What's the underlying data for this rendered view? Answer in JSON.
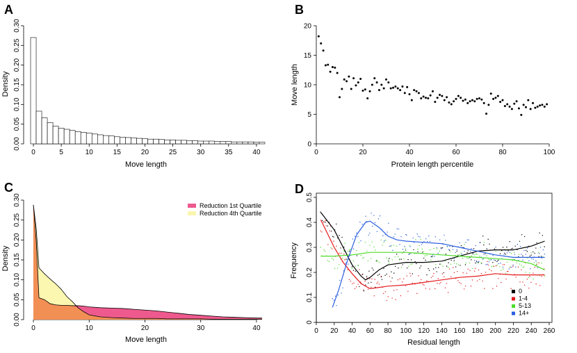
{
  "chart_data": [
    {
      "panel": "A",
      "type": "bar",
      "title": "",
      "xlabel": "Move length",
      "ylabel": "Density",
      "xlim": [
        -1,
        42
      ],
      "ylim": [
        0,
        0.3
      ],
      "xticks": [
        0,
        5,
        10,
        15,
        20,
        25,
        30,
        35,
        40
      ],
      "yticks": [
        0.0,
        0.05,
        0.1,
        0.15,
        0.2,
        0.25,
        0.3
      ],
      "ytick_labels": [
        "0.00",
        "0.05",
        "0.10",
        "0.15",
        "0.20",
        "0.25",
        "0.30"
      ],
      "bin_width": 1,
      "bin_starts": [
        -0.5,
        0.5,
        1.5,
        2.5,
        3.5,
        4.5,
        5.5,
        6.5,
        7.5,
        8.5,
        9.5,
        10.5,
        11.5,
        12.5,
        13.5,
        14.5,
        15.5,
        16.5,
        17.5,
        18.5,
        19.5,
        20.5,
        21.5,
        22.5,
        23.5,
        24.5,
        25.5,
        26.5,
        27.5,
        28.5,
        29.5,
        30.5,
        31.5,
        32.5,
        33.5,
        34.5,
        35.5,
        36.5,
        37.5,
        38.5,
        39.5,
        40.5
      ],
      "values": [
        0.27,
        0.083,
        0.066,
        0.054,
        0.045,
        0.04,
        0.037,
        0.034,
        0.031,
        0.029,
        0.027,
        0.025,
        0.023,
        0.021,
        0.02,
        0.018,
        0.017,
        0.016,
        0.015,
        0.014,
        0.013,
        0.012,
        0.012,
        0.011,
        0.01,
        0.01,
        0.009,
        0.009,
        0.008,
        0.008,
        0.007,
        0.007,
        0.007,
        0.006,
        0.006,
        0.006,
        0.005,
        0.005,
        0.005,
        0.005,
        0.004,
        0.004
      ]
    },
    {
      "panel": "B",
      "type": "scatter",
      "title": "",
      "xlabel": "Protein length percentile",
      "ylabel": "Move length",
      "xlim": [
        0,
        100
      ],
      "ylim": [
        0,
        20
      ],
      "xticks": [
        0,
        20,
        40,
        60,
        80,
        100
      ],
      "yticks": [
        0,
        5,
        10,
        15,
        20
      ],
      "x": [
        1,
        2,
        3,
        4,
        5,
        6,
        7,
        8,
        9,
        10,
        11,
        12,
        13,
        14,
        15,
        16,
        17,
        18,
        19,
        20,
        21,
        22,
        23,
        24,
        25,
        26,
        27,
        28,
        29,
        30,
        31,
        32,
        33,
        34,
        35,
        36,
        37,
        38,
        39,
        40,
        41,
        42,
        43,
        44,
        45,
        46,
        47,
        48,
        49,
        50,
        51,
        52,
        53,
        54,
        55,
        56,
        57,
        58,
        59,
        60,
        61,
        62,
        63,
        64,
        65,
        66,
        67,
        68,
        69,
        70,
        71,
        72,
        73,
        74,
        75,
        76,
        77,
        78,
        79,
        80,
        81,
        82,
        83,
        84,
        85,
        86,
        87,
        88,
        89,
        90,
        91,
        92,
        93,
        94,
        95,
        96,
        97,
        98,
        99
      ],
      "y": [
        18.2,
        17.0,
        15.8,
        13.3,
        13.4,
        12.2,
        13.0,
        12.9,
        12.0,
        7.9,
        9.3,
        10.9,
        10.6,
        11.4,
        9.3,
        11.1,
        9.9,
        10.4,
        11.0,
        9.0,
        9.2,
        7.7,
        8.9,
        10.0,
        11.1,
        10.4,
        9.1,
        10.0,
        9.4,
        10.9,
        10.4,
        9.4,
        9.5,
        9.7,
        9.4,
        9.1,
        9.7,
        8.6,
        9.6,
        8.4,
        7.4,
        9.1,
        8.9,
        8.6,
        7.7,
        8.0,
        7.8,
        7.7,
        8.2,
        8.9,
        7.1,
        7.8,
        8.3,
        8.1,
        7.4,
        7.9,
        7.0,
        6.7,
        7.2,
        7.6,
        8.1,
        7.8,
        7.3,
        7.5,
        6.9,
        7.2,
        7.4,
        7.2,
        7.6,
        7.7,
        7.5,
        6.9,
        5.1,
        6.6,
        8.5,
        7.6,
        7.8,
        8.1,
        7.1,
        7.4,
        6.4,
        6.7,
        6.3,
        5.9,
        6.8,
        7.2,
        6.0,
        4.9,
        6.6,
        6.2,
        7.4,
        5.9,
        6.9,
        6.1,
        6.3,
        6.5,
        6.6,
        6.3,
        6.7
      ]
    },
    {
      "panel": "C",
      "type": "area",
      "title": "",
      "xlabel": "Move length",
      "ylabel": "Density",
      "xlim": [
        -1,
        42
      ],
      "ylim": [
        0,
        0.3
      ],
      "xticks": [
        0,
        10,
        20,
        30,
        40
      ],
      "yticks": [
        0.0,
        0.05,
        0.1,
        0.15,
        0.2,
        0.25,
        0.3
      ],
      "ytick_labels": [
        "0.00",
        "0.05",
        "0.10",
        "0.15",
        "0.20",
        "0.25",
        "0.30"
      ],
      "legend_position": "top-right",
      "series": [
        {
          "name": "Reduction 1st Quartile",
          "color": "#ee5a8e",
          "x": [
            0,
            0.5,
            1,
            2,
            3,
            4,
            5,
            6,
            7,
            8,
            9,
            10,
            12,
            14,
            16,
            18,
            20,
            22,
            24,
            26,
            28,
            30,
            32,
            34,
            36,
            38,
            40,
            41
          ],
          "values": [
            0.288,
            0.2,
            0.055,
            0.05,
            0.04,
            0.037,
            0.036,
            0.036,
            0.035,
            0.035,
            0.034,
            0.032,
            0.03,
            0.029,
            0.028,
            0.026,
            0.024,
            0.022,
            0.019,
            0.016,
            0.013,
            0.011,
            0.009,
            0.007,
            0.006,
            0.005,
            0.004,
            0.004
          ]
        },
        {
          "name": "Reduction 4th Quartile",
          "color": "#fbf6b0",
          "x": [
            0,
            0.5,
            1,
            2,
            3,
            4,
            5,
            6,
            7,
            8,
            9,
            10,
            12,
            14,
            16,
            18,
            20,
            22,
            24,
            26,
            28,
            30,
            32,
            34,
            36,
            38,
            40,
            41
          ],
          "values": [
            0.288,
            0.23,
            0.13,
            0.115,
            0.102,
            0.09,
            0.076,
            0.058,
            0.045,
            0.03,
            0.02,
            0.012,
            0.007,
            0.005,
            0.004,
            0.003,
            0.003,
            0.003,
            0.002,
            0.002,
            0.002,
            0.002,
            0.001,
            0.001,
            0.001,
            0.001,
            0.001,
            0.001
          ]
        }
      ],
      "overlap_color": "#f28f55"
    },
    {
      "panel": "D",
      "type": "scatter",
      "title": "",
      "xlabel": "Residual length",
      "ylabel": "Frequency",
      "xlim": [
        0,
        260
      ],
      "ylim": [
        0,
        0.5
      ],
      "xticks": [
        0,
        20,
        40,
        60,
        80,
        100,
        120,
        140,
        160,
        180,
        200,
        220,
        240,
        260
      ],
      "yticks": [
        0.0,
        0.1,
        0.2,
        0.3,
        0.4,
        0.5
      ],
      "legend_position": "bottom-right",
      "series": [
        {
          "name": "0",
          "color": "#000000",
          "curve_x": [
            5,
            20,
            30,
            40,
            50,
            55,
            60,
            70,
            80,
            100,
            120,
            140,
            160,
            180,
            200,
            220,
            240,
            255
          ],
          "curve_y": [
            0.44,
            0.37,
            0.3,
            0.23,
            0.185,
            0.17,
            0.18,
            0.21,
            0.23,
            0.24,
            0.24,
            0.245,
            0.265,
            0.285,
            0.29,
            0.29,
            0.305,
            0.325
          ]
        },
        {
          "name": "1-4",
          "color": "#e41a1c",
          "curve_x": [
            5,
            20,
            30,
            40,
            50,
            60,
            70,
            80,
            100,
            120,
            140,
            160,
            180,
            200,
            220,
            240,
            255
          ],
          "curve_y": [
            0.41,
            0.3,
            0.24,
            0.195,
            0.155,
            0.135,
            0.14,
            0.145,
            0.15,
            0.16,
            0.17,
            0.18,
            0.185,
            0.195,
            0.19,
            0.19,
            0.19
          ]
        },
        {
          "name": "5-13",
          "color": "#4ddc2a",
          "curve_x": [
            5,
            20,
            40,
            60,
            80,
            100,
            120,
            140,
            160,
            180,
            200,
            220,
            240,
            255
          ],
          "curve_y": [
            0.265,
            0.265,
            0.27,
            0.28,
            0.28,
            0.28,
            0.275,
            0.27,
            0.265,
            0.26,
            0.255,
            0.25,
            0.235,
            0.21
          ]
        },
        {
          "name": "14+",
          "color": "#2b5fe0",
          "curve_x": [
            18,
            25,
            35,
            45,
            55,
            60,
            70,
            80,
            90,
            100,
            120,
            140,
            160,
            180,
            200,
            220,
            240,
            255
          ],
          "curve_y": [
            0.06,
            0.13,
            0.25,
            0.35,
            0.4,
            0.405,
            0.38,
            0.345,
            0.33,
            0.325,
            0.32,
            0.315,
            0.3,
            0.285,
            0.27,
            0.26,
            0.26,
            0.26
          ]
        }
      ]
    }
  ],
  "panel_labels": [
    "A",
    "B",
    "C",
    "D"
  ]
}
